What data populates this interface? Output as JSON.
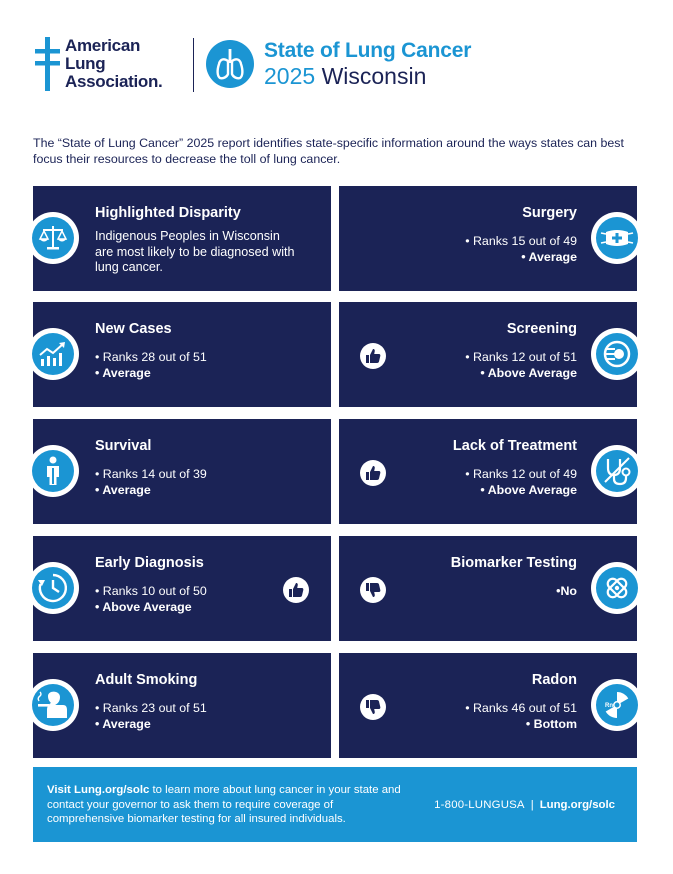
{
  "header": {
    "logo_lines": [
      "American",
      "Lung",
      "Association."
    ],
    "title_line1": "State of Lung Cancer",
    "title_year": "2025",
    "title_state": "Wisconsin",
    "colors": {
      "navy": "#1b2356",
      "blue": "#1b95d3"
    }
  },
  "intro": "The “State of Lung Cancer” 2025 report identifies state-specific information around the ways states can best focus their resources to decrease the toll of lung cancer.",
  "cards": {
    "disparity": {
      "title": "Highlighted Disparity",
      "text": "Indigenous Peoples in Wisconsin are most likely to be diagnosed with lung cancer.",
      "icon": "scales-icon"
    },
    "surgery": {
      "title": "Surgery",
      "rank": "• Ranks 15 out of 49",
      "rating": "• Average",
      "icon": "surgical-mask-icon"
    },
    "new_cases": {
      "title": "New Cases",
      "rank": "• Ranks 28 out of 51",
      "rating": "• Average",
      "icon": "trend-chart-icon"
    },
    "screening": {
      "title": "Screening",
      "rank": "• Ranks 12 out of 51",
      "rating": "• Above Average",
      "icon": "ct-scanner-icon",
      "thumb": "thumbs-up-icon"
    },
    "survival": {
      "title": "Survival",
      "rank": "• Ranks 14 out of 39",
      "rating": "• Average",
      "icon": "person-icon"
    },
    "lack_of_treatment": {
      "title": "Lack of Treatment",
      "rank": "• Ranks 12 out of 49",
      "rating": "• Above Average",
      "icon": "stethoscope-icon",
      "thumb": "thumbs-up-icon"
    },
    "early_diagnosis": {
      "title": "Early Diagnosis",
      "rank": "• Ranks 10 out of 50",
      "rating": "• Above Average",
      "icon": "clock-icon",
      "thumb": "thumbs-up-icon"
    },
    "biomarker": {
      "title": "Biomarker Testing",
      "rating": "•No",
      "icon": "dna-icon",
      "thumb": "thumbs-down-icon"
    },
    "adult_smoking": {
      "title": "Adult Smoking",
      "rank": "• Ranks 23 out of 51",
      "rating": "• Average",
      "icon": "smoker-icon"
    },
    "radon": {
      "title": "Radon",
      "rank": "• Ranks 46 out of 51",
      "rating": "• Bottom",
      "icon": "radon-icon",
      "thumb": "thumbs-down-icon"
    }
  },
  "footer": {
    "visit": "Visit",
    "link1": "Lung.org/solc",
    "message": " to learn more about lung cancer in your state and contact your governor to ask them to require coverage of comprehensive biomarker testing for all insured individuals.",
    "phone": "1-800-LUNGUSA",
    "separator": "|",
    "link2": "Lung.org/solc"
  }
}
